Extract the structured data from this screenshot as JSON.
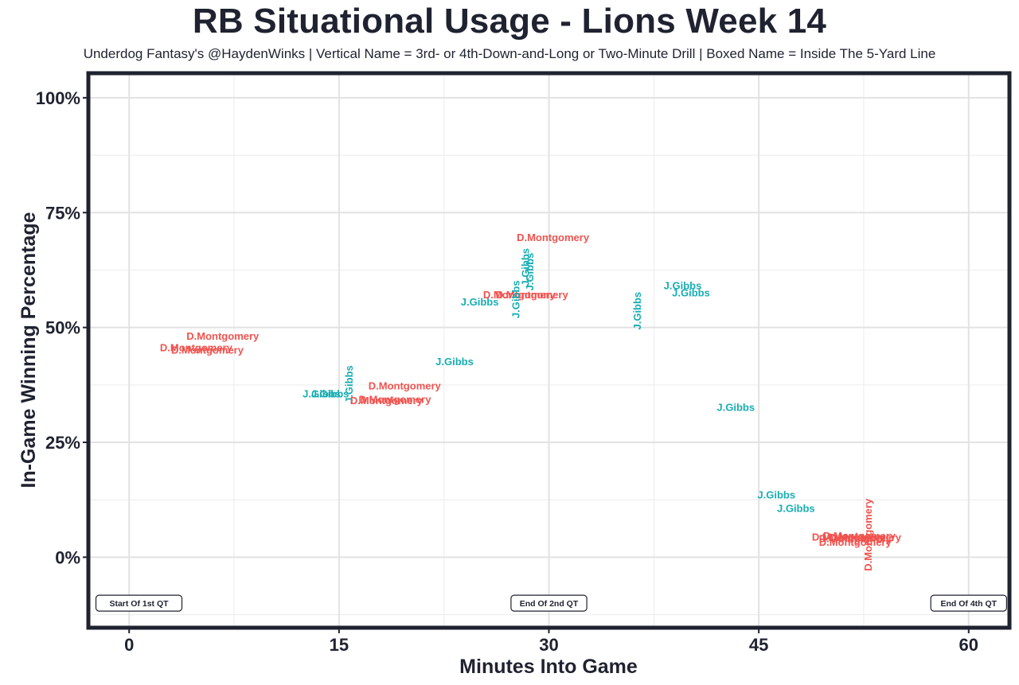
{
  "chart_data": {
    "type": "scatter",
    "title": "RB Situational Usage - Lions Week 14",
    "subtitle": "Underdog Fantasy's @HaydenWinks | Vertical Name = 3rd- or 4th-Down-and-Long or Two-Minute Drill | Boxed Name = Inside The 5-Yard Line",
    "xlabel": "Minutes Into Game",
    "ylabel": "In-Game Winning Percentage",
    "xlim": [
      -2.8,
      62.8
    ],
    "ylim": [
      -15,
      105
    ],
    "x_ticks": [
      0,
      15,
      30,
      45,
      60
    ],
    "x_tick_labels": [
      "0",
      "15",
      "30",
      "45",
      "60"
    ],
    "y_ticks": [
      0,
      25,
      50,
      75,
      100
    ],
    "y_tick_labels": [
      "0%",
      "25%",
      "50%",
      "75%",
      "100%"
    ],
    "grid": true,
    "colors": {
      "D.Montgomery": "#f0534f",
      "J.Gibbs": "#17adb3",
      "frame": "#1f2230"
    },
    "annotations": [
      {
        "x": 0.7,
        "y": -10,
        "text": "Start Of 1st QT"
      },
      {
        "x": 30,
        "y": -10,
        "text": "End Of 2nd QT"
      },
      {
        "x": 60,
        "y": -10,
        "text": "End Of 4th QT"
      }
    ],
    "points": [
      {
        "player": "D.Montgomery",
        "x": 2.2,
        "y": 45.5,
        "vertical": false
      },
      {
        "player": "D.Montgomery",
        "x": 3.0,
        "y": 45.0,
        "vertical": false
      },
      {
        "player": "D.Montgomery",
        "x": 4.1,
        "y": 48.0,
        "vertical": false
      },
      {
        "player": "J.Gibbs",
        "x": 12.4,
        "y": 35.5,
        "vertical": false
      },
      {
        "player": "J.Gibbs",
        "x": 13.0,
        "y": 35.5,
        "vertical": false
      },
      {
        "player": "J.Gibbs",
        "x": 15.7,
        "y": 33.5,
        "vertical": true
      },
      {
        "player": "D.Montgomery",
        "x": 15.8,
        "y": 34.0,
        "vertical": false
      },
      {
        "player": "D.Montgomery",
        "x": 16.4,
        "y": 34.3,
        "vertical": false
      },
      {
        "player": "D.Montgomery",
        "x": 17.1,
        "y": 37.2,
        "vertical": false
      },
      {
        "player": "J.Gibbs",
        "x": 21.9,
        "y": 42.5,
        "vertical": false
      },
      {
        "player": "J.Gibbs",
        "x": 23.7,
        "y": 55.5,
        "vertical": false
      },
      {
        "player": "D.Montgomery",
        "x": 25.3,
        "y": 57.0,
        "vertical": false
      },
      {
        "player": "D.Montgomery",
        "x": 26.2,
        "y": 57.0,
        "vertical": false
      },
      {
        "player": "J.Gibbs",
        "x": 27.6,
        "y": 52.0,
        "vertical": true
      },
      {
        "player": "D.Montgomery",
        "x": 27.7,
        "y": 69.5,
        "vertical": false
      },
      {
        "player": "J.Gibbs",
        "x": 28.3,
        "y": 59.0,
        "vertical": true
      },
      {
        "player": "J.Gibbs",
        "x": 28.6,
        "y": 58.0,
        "vertical": true
      },
      {
        "player": "J.Gibbs",
        "x": 36.3,
        "y": 49.5,
        "vertical": true
      },
      {
        "player": "J.Gibbs",
        "x": 38.2,
        "y": 59.0,
        "vertical": false
      },
      {
        "player": "J.Gibbs",
        "x": 38.8,
        "y": 57.5,
        "vertical": false
      },
      {
        "player": "J.Gibbs",
        "x": 42.0,
        "y": 32.5,
        "vertical": false
      },
      {
        "player": "J.Gibbs",
        "x": 44.9,
        "y": 13.5,
        "vertical": false
      },
      {
        "player": "J.Gibbs",
        "x": 46.3,
        "y": 10.5,
        "vertical": false
      },
      {
        "player": "D.Montgomery",
        "x": 48.8,
        "y": 4.3,
        "vertical": false
      },
      {
        "player": "D.Montgomery",
        "x": 49.3,
        "y": 4.0,
        "vertical": false
      },
      {
        "player": "D.Montgomery",
        "x": 49.6,
        "y": 4.6,
        "vertical": false
      },
      {
        "player": "D.Montgomery",
        "x": 50.0,
        "y": 4.2,
        "vertical": false
      },
      {
        "player": "D.Montgomery",
        "x": 49.3,
        "y": 3.2,
        "vertical": false
      },
      {
        "player": "D.Montgomery",
        "x": 52.8,
        "y": -3.0,
        "vertical": true
      }
    ]
  }
}
